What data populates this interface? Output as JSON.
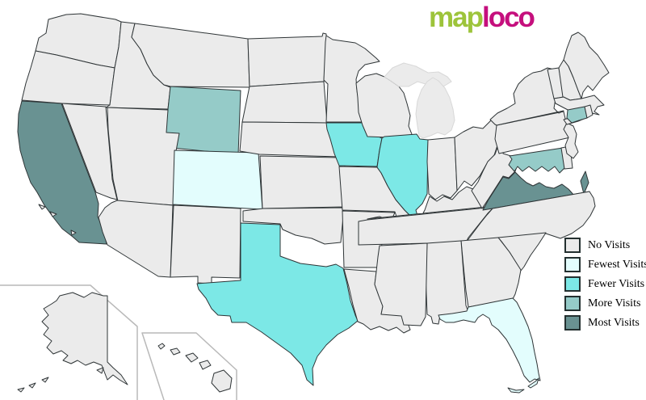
{
  "logo": {
    "map_text": "map",
    "loco_text": "loco",
    "map_color": "#9dc43b",
    "loco_color": "#c50f7d"
  },
  "legend": {
    "items": [
      {
        "id": "none",
        "label": "No Visits",
        "color": "#ebebeb"
      },
      {
        "id": "fewest",
        "label": "Fewest Visits",
        "color": "#e3fdfd"
      },
      {
        "id": "fewer",
        "label": "Fewer Visits",
        "color": "#7ce8e6"
      },
      {
        "id": "more",
        "label": "More Visits",
        "color": "#95cbc8"
      },
      {
        "id": "most",
        "label": "Most Visits",
        "color": "#699292"
      }
    ]
  },
  "map": {
    "border_color": "#2e3436",
    "light_stroke_color": "#d8d8d8",
    "inset_border_color": "#b9b9b9",
    "background": "#ffffff",
    "state_levels": {
      "california": "most",
      "virginia": "most",
      "virginia-eastern-shore": "most",
      "wyoming": "more",
      "connecticut": "more",
      "maryland": "more",
      "texas": "fewer",
      "iowa": "fewer",
      "illinois": "fewer",
      "colorado": "fewest",
      "florida": "fewest",
      "florida-keys": "fewest"
    }
  }
}
